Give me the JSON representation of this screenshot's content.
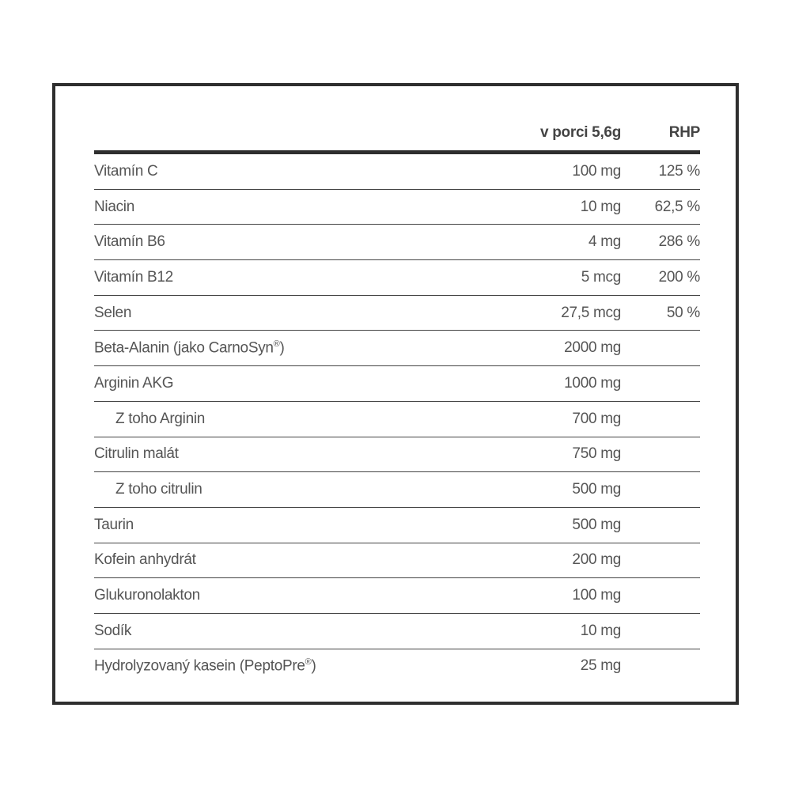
{
  "table": {
    "headers": {
      "name": "",
      "per_serving": "v porci 5,6g",
      "rhp": "RHP"
    },
    "rows": [
      {
        "name": "Vitamín C",
        "value": "100 mg",
        "rhp": "125 %"
      },
      {
        "name": "Niacin",
        "value": "10 mg",
        "rhp": "62,5 %"
      },
      {
        "name": "Vitamín B6",
        "value": "4 mg",
        "rhp": "286 %"
      },
      {
        "name": "Vitamín B12",
        "value": "5 mcg",
        "rhp": "200 %"
      },
      {
        "name": "Selen",
        "value": "27,5 mcg",
        "rhp": "50 %"
      },
      {
        "name": "Beta-Alanin (jako CarnoSyn®)",
        "value": "2000 mg",
        "rhp": ""
      },
      {
        "name": "Arginin AKG",
        "value": "1000 mg",
        "rhp": ""
      },
      {
        "name": "Z toho Arginin",
        "value": "700 mg",
        "rhp": "",
        "indent": true
      },
      {
        "name": "Citrulin malát",
        "value": "750 mg",
        "rhp": ""
      },
      {
        "name": "Z toho citrulin",
        "value": "500 mg",
        "rhp": "",
        "indent": true
      },
      {
        "name": "Taurin",
        "value": "500 mg",
        "rhp": ""
      },
      {
        "name": "Kofein anhydrát",
        "value": "200 mg",
        "rhp": ""
      },
      {
        "name": "Glukuronolakton",
        "value": "100 mg",
        "rhp": ""
      },
      {
        "name": "Sodík",
        "value": "10 mg",
        "rhp": ""
      },
      {
        "name": "Hydrolyzovaný kasein (PeptoPre®)",
        "value": "25 mg",
        "rhp": ""
      }
    ]
  }
}
